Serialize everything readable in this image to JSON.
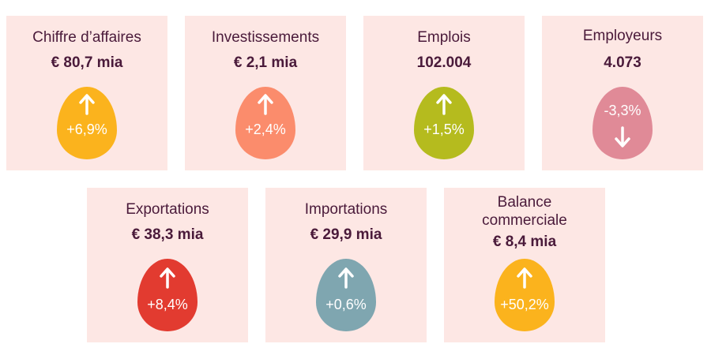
{
  "cards": [
    {
      "title": "Chiffre d’affaires",
      "value": "€ 80,7 mia",
      "change": "+6,9%",
      "direction": "up",
      "color": "#fbb31d"
    },
    {
      "title": "Investissements",
      "value": "€ 2,1 mia",
      "change": "+2,4%",
      "direction": "up",
      "color": "#fb8c6c"
    },
    {
      "title": "Emplois",
      "value": "102.004",
      "change": "+1,5%",
      "direction": "up",
      "color": "#b5bb1e"
    },
    {
      "title": "Employeurs",
      "value": "4.073",
      "change": "-3,3%",
      "direction": "down",
      "color": "#e08a97"
    },
    {
      "title": "Exportations",
      "value": "€ 38,3 mia",
      "change": "+8,4%",
      "direction": "up",
      "color": "#e23b30"
    },
    {
      "title": "Importations",
      "value": "€ 29,9 mia",
      "change": "+0,6%",
      "direction": "up",
      "color": "#7fa6b0"
    },
    {
      "title_line1": "Balance",
      "title_line2": "commerciale",
      "value": "€ 8,4 mia",
      "change": "+50,2%",
      "direction": "up",
      "color": "#fbb31d"
    }
  ]
}
